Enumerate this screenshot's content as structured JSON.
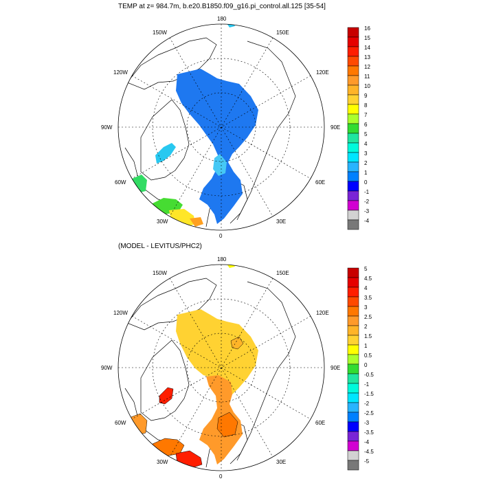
{
  "top": {
    "title": "TEMP at z= 984.7m, b.e20.B1850.f09_g16.pi_control.all.125 [35-54]",
    "lon_labels": {
      "n": "180",
      "ne": "150E",
      "nw": "150W",
      "wn": "120W",
      "en": "120E",
      "w": "90W",
      "e": "90E",
      "ws": "60W",
      "es": "60E",
      "sw": "30W",
      "se": "30E",
      "s": "0"
    },
    "colorbar": {
      "labels": [
        "16",
        "15",
        "14",
        "13",
        "12",
        "11",
        "10",
        "9",
        "8",
        "7",
        "6",
        "5",
        "4",
        "3",
        "2",
        "1",
        "0",
        "-1",
        "-2",
        "-3",
        "-4"
      ],
      "colors": [
        "#c80000",
        "#e60000",
        "#ff1e00",
        "#ff4a00",
        "#ff7800",
        "#ff9a2a",
        "#ffb428",
        "#ffd232",
        "#ffff00",
        "#aaff2d",
        "#32dc32",
        "#20e6a0",
        "#00fadc",
        "#00e6ff",
        "#28b4ff",
        "#0080ff",
        "#0000ff",
        "#7a24d6",
        "#d200d2",
        "#d2d2d2",
        "#787878"
      ]
    }
  },
  "bottom": {
    "title": "(MODEL - LEVITUS/PHC2)",
    "lon_labels": {
      "n": "180",
      "ne": "150E",
      "nw": "150W",
      "wn": "120W",
      "en": "120E",
      "w": "90W",
      "e": "90E",
      "ws": "60W",
      "es": "60E",
      "sw": "30W",
      "se": "30E",
      "s": "0"
    },
    "colorbar": {
      "labels": [
        "5",
        "4.5",
        "4",
        "3.5",
        "3",
        "2.5",
        "2",
        "1.5",
        "1",
        "0.5",
        "0",
        "-0.5",
        "-1",
        "-1.5",
        "-2",
        "-2.5",
        "-3",
        "-3.5",
        "-4",
        "-4.5",
        "-5"
      ],
      "colors": [
        "#c80000",
        "#e60000",
        "#ff1e00",
        "#ff4a00",
        "#ff7800",
        "#ff9a2a",
        "#ffb428",
        "#ffd232",
        "#ffff00",
        "#aaff2d",
        "#32dc32",
        "#20e6a0",
        "#00fadc",
        "#00e6ff",
        "#28b4ff",
        "#0080ff",
        "#0000ff",
        "#7a24d6",
        "#d200d2",
        "#d2d2d2",
        "#787878"
      ]
    }
  }
}
